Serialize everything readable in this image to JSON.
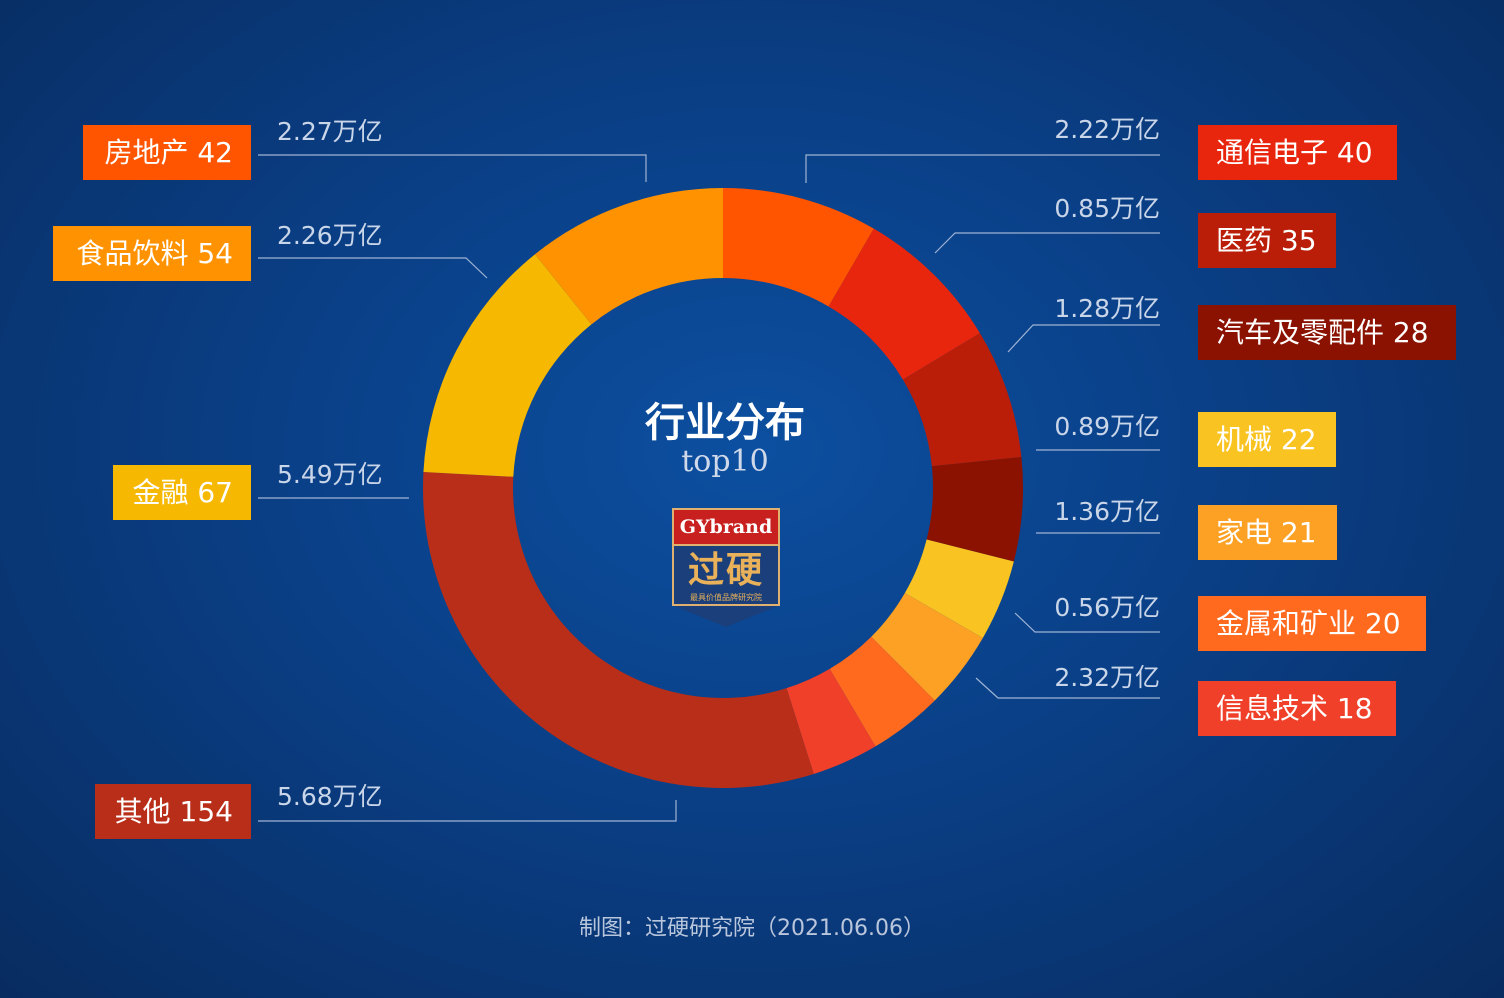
{
  "chart_data": {
    "type": "pie",
    "center_title": "行业分布",
    "center_subtitle": "top10",
    "logo": {
      "brand": "GYbrand",
      "name": "过硬",
      "tagline": "最具价值品牌研究院"
    },
    "slices": [
      {
        "label": "房地产 42",
        "value": "2.27万亿",
        "count": 42,
        "trillion": 2.27,
        "color": "#ff5400"
      },
      {
        "label": "通信电子 40",
        "value": "2.22万亿",
        "count": 40,
        "trillion": 2.22,
        "color": "#e8260e"
      },
      {
        "label": "医药 35",
        "value": "0.85万亿",
        "count": 35,
        "trillion": 0.85,
        "color": "#bb1e08"
      },
      {
        "label": "汽车及零配件 28",
        "value": "1.28万亿",
        "count": 28,
        "trillion": 1.28,
        "color": "#8b1200"
      },
      {
        "label": "机械 22",
        "value": "0.89万亿",
        "count": 22,
        "trillion": 0.89,
        "color": "#f9c322"
      },
      {
        "label": "家电 21",
        "value": "1.36万亿",
        "count": 21,
        "trillion": 1.36,
        "color": "#fda124"
      },
      {
        "label": "金属和矿业 20",
        "value": "0.56万亿",
        "count": 20,
        "trillion": 0.56,
        "color": "#ff6a1e"
      },
      {
        "label": "信息技术 18",
        "value": "2.32万亿",
        "count": 18,
        "trillion": 2.32,
        "color": "#f0402a"
      },
      {
        "label": "其他 154",
        "value": "5.68万亿",
        "count": 154,
        "trillion": 5.68,
        "color": "#b92e18"
      },
      {
        "label": "金融 67",
        "value": "5.49万亿",
        "count": 67,
        "trillion": 5.49,
        "color": "#f6b800"
      },
      {
        "label": "食品饮料 54",
        "value": "2.26万亿",
        "count": 54,
        "trillion": 2.26,
        "color": "#ff9200"
      }
    ]
  },
  "footer": "制图：过硬研究院（2021.06.06）"
}
